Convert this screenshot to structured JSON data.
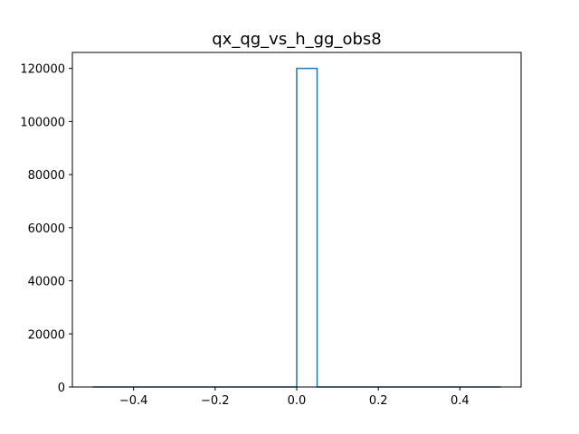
{
  "chart_data": {
    "type": "histogram",
    "title": "qx_qg_vs_h_gg_obs8",
    "xlabel": "",
    "ylabel": "",
    "xlim": [
      -0.55,
      0.55
    ],
    "ylim": [
      0,
      126000
    ],
    "bin_edges": [
      -0.5,
      -0.45,
      -0.4,
      -0.35,
      -0.3,
      -0.25,
      -0.2,
      -0.15,
      -0.1,
      -0.05,
      0.0,
      0.05,
      0.1,
      0.15,
      0.2,
      0.25,
      0.3,
      0.35,
      0.4,
      0.45,
      0.5
    ],
    "counts": [
      0,
      0,
      0,
      0,
      0,
      0,
      0,
      0,
      0,
      0,
      120000,
      0,
      0,
      0,
      0,
      0,
      0,
      0,
      0,
      0
    ],
    "x_ticks": [
      -0.4,
      -0.2,
      0.0,
      0.2,
      0.4
    ],
    "x_tick_labels": [
      "−0.4",
      "−0.2",
      "0.0",
      "0.2",
      "0.4"
    ],
    "y_ticks": [
      0,
      20000,
      40000,
      60000,
      80000,
      100000,
      120000
    ],
    "y_tick_labels": [
      "0",
      "20000",
      "40000",
      "60000",
      "80000",
      "100000",
      "120000"
    ],
    "histtype": "step",
    "color": "#1f77b4",
    "grid": false
  }
}
